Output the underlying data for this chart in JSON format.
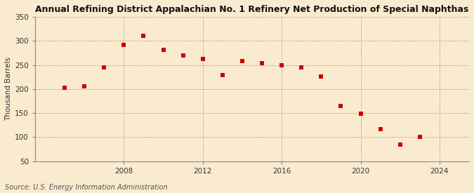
{
  "title": "Annual Refining District Appalachian No. 1 Refinery Net Production of Special Naphthas",
  "ylabel": "Thousand Barrels",
  "source": "Source: U.S. Energy Information Administration",
  "background_color": "#faebd0",
  "plot_bg_color": "#fdf6e3",
  "years": [
    2005,
    2006,
    2007,
    2008,
    2009,
    2010,
    2011,
    2012,
    2013,
    2014,
    2015,
    2016,
    2017,
    2018,
    2019,
    2020,
    2021,
    2022,
    2023
  ],
  "values": [
    203,
    206,
    245,
    291,
    311,
    282,
    270,
    263,
    229,
    258,
    253,
    250,
    245,
    226,
    165,
    149,
    116,
    84,
    100
  ],
  "marker_color": "#cc0000",
  "ylim": [
    50,
    350
  ],
  "yticks": [
    50,
    100,
    150,
    200,
    250,
    300,
    350
  ],
  "xticks": [
    2008,
    2012,
    2016,
    2020,
    2024
  ],
  "xlim": [
    2003.5,
    2025.5
  ],
  "title_fontsize": 9.0,
  "ylabel_fontsize": 7.5,
  "tick_fontsize": 7.5,
  "source_fontsize": 7.0,
  "marker_size": 20
}
